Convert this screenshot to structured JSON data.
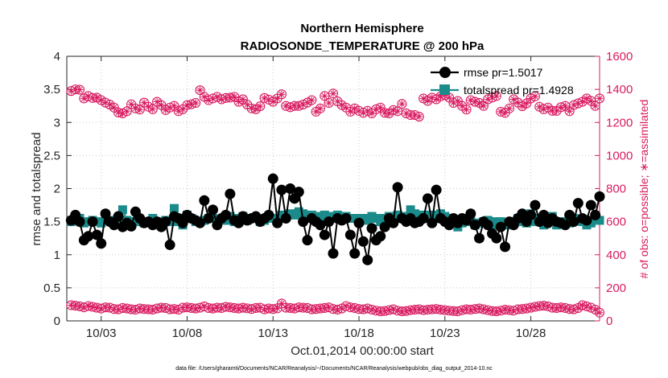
{
  "chart_data": {
    "type": "line",
    "title": "Northern Hemisphere",
    "subtitle": "RADIOSONDE_TEMPERATURE @ 200 hPa",
    "xlabel": "Oct.01,2014 00:00:00 start",
    "ylabel": "rmse and totalspread",
    "ylabel_right": "# of obs: o=possible; ∗=assimilated",
    "footnote": "data file: /Users/gharamti/Documents/NCAR/Reanalysis/~/Documents/NCAR/Reanalysis/webpub/obs_diag_output_2014-10.nc",
    "xlim": [
      1.0,
      32.0
    ],
    "ylim": [
      0,
      4
    ],
    "ylim_right": [
      0,
      1600
    ],
    "x_ticks": [
      3,
      8,
      13,
      18,
      23,
      28
    ],
    "x_tick_labels": [
      "10/03",
      "10/08",
      "10/13",
      "10/18",
      "10/23",
      "10/28"
    ],
    "y_ticks": [
      0,
      0.5,
      1,
      1.5,
      2,
      2.5,
      3,
      3.5,
      4
    ],
    "y_tick_labels": [
      "0",
      "0.5",
      "1",
      "1.5",
      "2",
      "2.5",
      "3",
      "3.5",
      "4"
    ],
    "y_right_ticks": [
      0,
      200,
      400,
      600,
      800,
      1000,
      1200,
      1400,
      1600
    ],
    "y_right_tick_labels": [
      "0",
      "200",
      "400",
      "600",
      "800",
      "1000",
      "1200",
      "1400",
      "1600"
    ],
    "grid": true,
    "legend_position": "top-right",
    "legend": [
      "rmse pr=1.5017",
      "totalspread pr=1.4928"
    ],
    "colors": {
      "rmse": "#000000",
      "totalspread": "#1b8a8a",
      "obs": "#d81b60",
      "axis": "#262626"
    },
    "x": [
      1.25,
      1.5,
      1.75,
      2.0,
      2.25,
      2.5,
      2.75,
      3.0,
      3.25,
      3.5,
      3.75,
      4.0,
      4.25,
      4.5,
      4.75,
      5.0,
      5.25,
      5.5,
      5.75,
      6.0,
      6.25,
      6.5,
      6.75,
      7.0,
      7.25,
      7.5,
      7.75,
      8.0,
      8.25,
      8.5,
      8.75,
      9.0,
      9.25,
      9.5,
      9.75,
      10.0,
      10.25,
      10.5,
      10.75,
      11.0,
      11.25,
      11.5,
      11.75,
      12.0,
      12.25,
      12.5,
      12.75,
      13.0,
      13.25,
      13.5,
      13.75,
      14.0,
      14.25,
      14.5,
      14.75,
      15.0,
      15.25,
      15.5,
      15.75,
      16.0,
      16.25,
      16.5,
      16.75,
      17.0,
      17.25,
      17.5,
      17.75,
      18.0,
      18.25,
      18.5,
      18.75,
      19.0,
      19.25,
      19.5,
      19.75,
      20.0,
      20.25,
      20.5,
      20.75,
      21.0,
      21.25,
      21.5,
      21.75,
      22.0,
      22.25,
      22.5,
      22.75,
      23.0,
      23.25,
      23.5,
      23.75,
      24.0,
      24.25,
      24.5,
      24.75,
      25.0,
      25.25,
      25.5,
      25.75,
      26.0,
      26.25,
      26.5,
      26.75,
      27.0,
      27.25,
      27.5,
      27.75,
      28.0,
      28.25,
      28.5,
      28.75,
      29.0,
      29.25,
      29.5,
      29.75,
      30.0,
      30.25,
      30.5,
      30.75,
      31.0,
      31.25,
      31.5,
      31.75,
      32.0
    ],
    "series": [
      {
        "name": "rmse",
        "values": [
          1.52,
          1.6,
          1.5,
          1.22,
          1.28,
          1.5,
          1.3,
          1.17,
          1.62,
          1.5,
          1.45,
          1.58,
          1.42,
          1.48,
          1.43,
          1.65,
          1.55,
          1.48,
          1.5,
          1.45,
          1.5,
          1.42,
          1.5,
          1.15,
          1.58,
          1.55,
          1.48,
          1.6,
          1.55,
          1.52,
          1.48,
          1.82,
          1.55,
          1.68,
          1.45,
          1.55,
          1.6,
          1.92,
          1.52,
          1.48,
          1.58,
          1.52,
          1.55,
          1.58,
          1.5,
          1.55,
          1.6,
          2.15,
          1.48,
          1.98,
          1.55,
          2.0,
          1.85,
          1.95,
          1.5,
          1.22,
          1.55,
          1.5,
          1.45,
          1.3,
          1.5,
          1.02,
          1.55,
          1.52,
          1.55,
          1.3,
          1.02,
          1.48,
          1.2,
          0.92,
          1.4,
          1.22,
          1.28,
          1.42,
          1.55,
          1.48,
          2.02,
          1.55,
          1.5,
          1.55,
          1.48,
          1.5,
          1.55,
          1.85,
          1.48,
          1.98,
          1.55,
          1.5,
          1.45,
          1.55,
          1.48,
          1.55,
          1.52,
          1.62,
          1.45,
          1.25,
          1.5,
          1.45,
          1.32,
          1.25,
          1.42,
          1.12,
          1.5,
          1.45,
          1.55,
          1.62,
          1.5,
          1.6,
          1.75,
          1.5,
          1.6,
          1.48,
          1.55,
          1.5,
          1.48,
          1.45,
          1.6,
          1.5,
          1.78,
          1.55,
          1.52,
          1.75,
          1.6,
          1.88
        ],
        "legend": "rmse pr=1.5017"
      },
      {
        "name": "totalspread",
        "values": [
          1.5,
          1.52,
          1.55,
          1.48,
          1.5,
          1.52,
          1.5,
          1.48,
          1.55,
          1.52,
          1.5,
          1.55,
          1.68,
          1.52,
          1.5,
          1.5,
          1.52,
          1.48,
          1.5,
          1.55,
          1.5,
          1.45,
          1.52,
          1.5,
          1.7,
          1.5,
          1.45,
          1.6,
          1.55,
          1.5,
          1.5,
          1.52,
          1.55,
          1.55,
          1.5,
          1.52,
          1.52,
          1.58,
          1.5,
          1.55,
          1.58,
          1.52,
          1.55,
          1.55,
          1.5,
          1.52,
          1.58,
          1.55,
          1.55,
          1.6,
          1.58,
          1.62,
          1.6,
          1.65,
          1.62,
          1.58,
          1.6,
          1.55,
          1.58,
          1.6,
          1.55,
          1.58,
          1.6,
          1.55,
          1.58,
          1.55,
          1.55,
          1.52,
          1.55,
          1.52,
          1.58,
          1.55,
          1.5,
          1.55,
          1.58,
          1.52,
          1.6,
          1.55,
          1.58,
          1.68,
          1.62,
          1.55,
          1.6,
          1.58,
          1.6,
          1.55,
          1.62,
          1.58,
          1.55,
          1.5,
          1.42,
          1.48,
          1.55,
          1.5,
          1.45,
          1.48,
          1.5,
          1.52,
          1.45,
          1.5,
          1.5,
          1.48,
          1.45,
          1.5,
          1.55,
          1.5,
          1.48,
          1.62,
          1.5,
          1.55,
          1.45,
          1.52,
          1.58,
          1.45,
          1.5,
          1.5,
          1.48,
          1.55,
          1.52,
          1.5,
          1.45,
          1.48,
          1.55,
          1.52
        ],
        "legend": "totalspread pr=1.4928"
      }
    ],
    "obs_possible_top": [
      1390,
      1400,
      1398,
      1345,
      1360,
      1348,
      1350,
      1335,
      1320,
      1308,
      1290,
      1260,
      1255,
      1268,
      1310,
      1285,
      1278,
      1320,
      1295,
      1280,
      1325,
      1305,
      1275,
      1290,
      1300,
      1268,
      1280,
      1305,
      1310,
      1318,
      1395,
      1355,
      1335,
      1345,
      1355,
      1340,
      1348,
      1350,
      1355,
      1325,
      1340,
      1308,
      1285,
      1280,
      1298,
      1348,
      1338,
      1325,
      1345,
      1370,
      1300,
      1292,
      1300,
      1300,
      1308,
      1320,
      1335,
      1265,
      1285,
      1360,
      1318,
      1375,
      1328,
      1305,
      1290,
      1265,
      1285,
      1270,
      1258,
      1270,
      1255,
      1280,
      1290,
      1258,
      1255,
      1275,
      1268,
      1312,
      1255,
      1245,
      1245,
      1235,
      1345,
      1330,
      1350,
      1340,
      1358,
      1365,
      1350,
      1318,
      1330,
      1300,
      1278,
      1335,
      1325,
      1318,
      1300,
      1340,
      1350,
      1360,
      1265,
      1258,
      1285,
      1340,
      1320,
      1298,
      1315,
      1345,
      1358,
      1295,
      1280,
      1290,
      1270,
      1270,
      1292,
      1300,
      1268,
      1305,
      1315,
      1325,
      1345,
      1330,
      1300,
      1345
    ],
    "obs_possible_bottom": [
      95,
      92,
      88,
      82,
      90,
      85,
      80,
      75,
      82,
      80,
      72,
      70,
      78,
      75,
      70,
      68,
      75,
      72,
      70,
      68,
      75,
      80,
      78,
      70,
      72,
      68,
      80,
      82,
      78,
      75,
      80,
      88,
      78,
      75,
      80,
      78,
      85,
      82,
      78,
      75,
      80,
      76,
      72,
      78,
      80,
      70,
      75,
      72,
      76,
      105,
      80,
      78,
      75,
      82,
      80,
      78,
      70,
      72,
      75,
      78,
      82,
      72,
      68,
      75,
      90,
      82,
      78,
      72,
      70,
      75,
      68,
      62,
      58,
      60,
      65,
      70,
      62,
      58,
      60,
      65,
      68,
      70,
      65,
      68,
      70,
      72,
      68,
      65,
      62,
      60,
      58,
      65,
      70,
      68,
      72,
      75,
      70,
      65,
      60,
      58,
      62,
      68,
      65,
      62,
      70,
      72,
      75,
      80,
      85,
      90,
      92,
      88,
      80,
      78,
      82,
      78,
      72,
      70,
      78,
      95,
      88,
      80,
      68,
      50
    ]
  }
}
